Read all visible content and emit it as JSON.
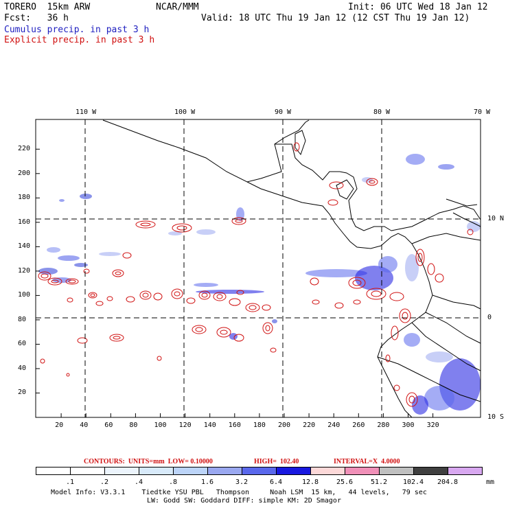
{
  "header": {
    "model": "TORERO  15km ARW",
    "org": "NCAR/MMM",
    "init": "Init: 06 UTC Wed 18 Jan 12",
    "fcst": "Fcst:   36 h",
    "valid": "Valid: 18 UTC Thu 19 Jan 12 (12 CST Thu 19 Jan 12)",
    "legend_cumulus": "Cumulus precip. in past 3 h",
    "legend_explicit": "Explicit precip. in past 3 h"
  },
  "axes": {
    "lon_labels": [
      "110 W",
      "100 W",
      "90 W",
      "80 W",
      "70 W"
    ],
    "lat_labels": [
      "10 N",
      "0",
      "10 S"
    ],
    "x_ticks": [
      "20",
      "40",
      "60",
      "80",
      "100",
      "120",
      "140",
      "160",
      "180",
      "200",
      "220",
      "240",
      "260",
      "280",
      "300",
      "320"
    ],
    "y_ticks": [
      "220",
      "200",
      "180",
      "160",
      "140",
      "120",
      "100",
      "80",
      "60",
      "40",
      "20"
    ]
  },
  "contours": {
    "label": "CONTOURS:  UNITS=mm  LOW= 0.10000",
    "high": "HIGH=  102.40",
    "interval": "INTERVAL=X  4.0000"
  },
  "colorbar": {
    "labels": [
      ".1",
      ".2",
      ".4",
      ".8",
      "1.6",
      "3.2",
      "6.4",
      "12.8",
      "25.6",
      "51.2",
      "102.4",
      "204.8"
    ],
    "unit": "mm",
    "colors": [
      "#ffffff",
      "#ffffff",
      "#ecf4fc",
      "#d8eafa",
      "#bcd4f8",
      "#9aa8f0",
      "#5a68ec",
      "#1818e0",
      "#fcd8d8",
      "#f090b8",
      "#c0c0c0",
      "#404040",
      "#d8a8f0"
    ]
  },
  "footer": {
    "line1": "Model Info: V3.3.1    Tiedtke YSU PBL   Thompson     Noah LSM  15 km,   44 levels,   79 sec",
    "line2": "LW: Godd SW: Goddard DIFF: simple KM: 2D Smagor"
  }
}
